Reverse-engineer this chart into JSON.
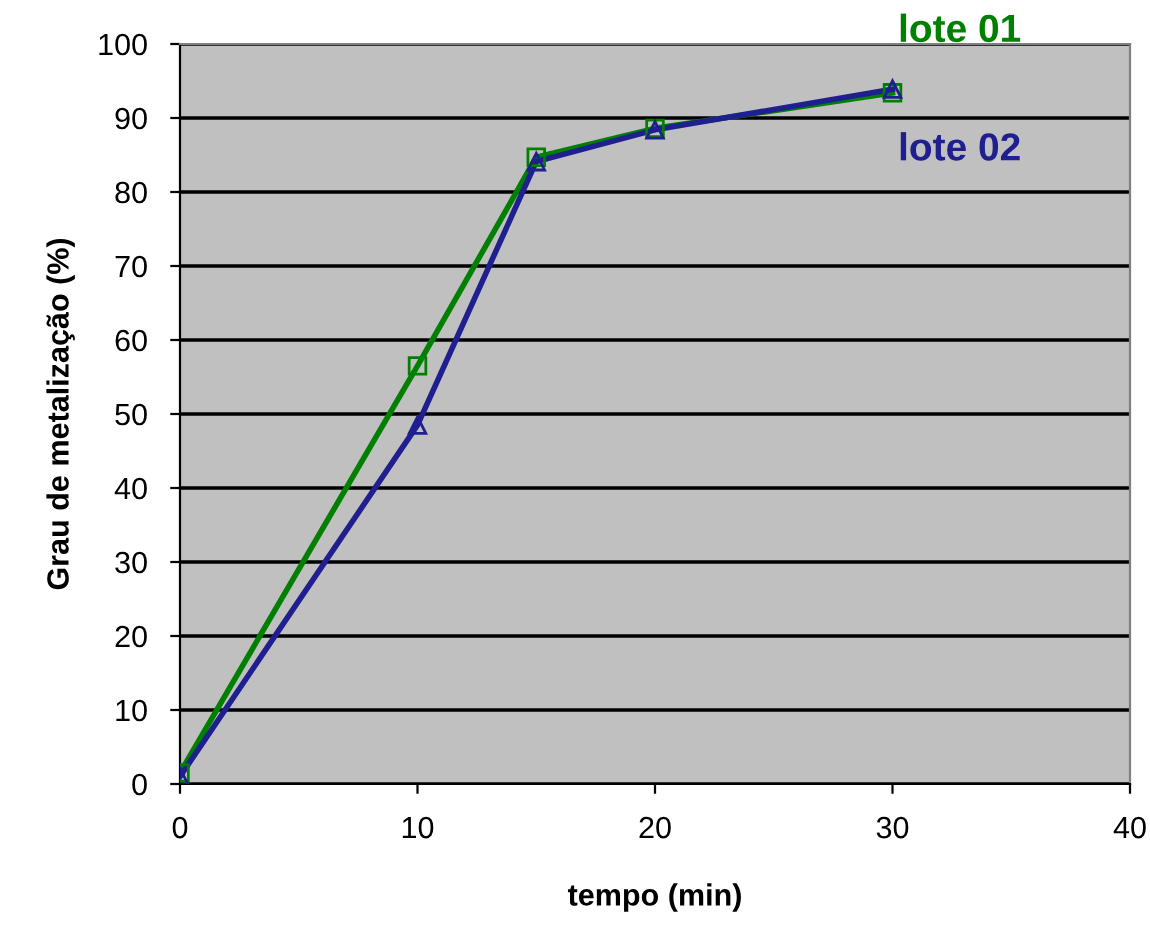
{
  "chart_data": {
    "type": "line",
    "xlabel": "tempo (min)",
    "ylabel": "Grau de metalização (%)",
    "x": [
      0,
      10,
      15,
      20,
      30
    ],
    "series": [
      {
        "name": "lote 01",
        "color": "#008000",
        "marker": "square",
        "values": [
          1.5,
          56.5,
          84.7,
          88.6,
          93.4
        ]
      },
      {
        "name": "lote 02",
        "color": "#1f1f8f",
        "marker": "triangle",
        "values": [
          1.0,
          48.5,
          84.1,
          88.4,
          93.9
        ]
      }
    ],
    "xlim": [
      0,
      40
    ],
    "xticks": [
      0,
      10,
      20,
      30,
      40
    ],
    "ylim": [
      0,
      100
    ],
    "yticks": [
      0,
      10,
      20,
      30,
      40,
      50,
      60,
      70,
      80,
      90,
      100
    ],
    "grid": "y",
    "legend": false,
    "line_style": "solid"
  }
}
